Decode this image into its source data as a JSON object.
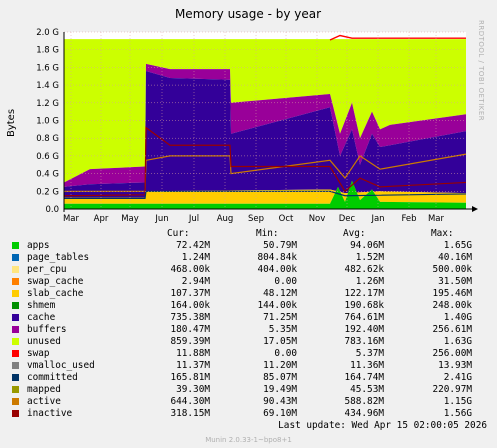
{
  "chart_data": {
    "type": "area",
    "title": "Memory usage - by year",
    "ylabel": "Bytes",
    "ylim": [
      0,
      2.0
    ],
    "y_unit": "G",
    "yticks": [
      "0.0",
      "0.2 G",
      "0.4 G",
      "0.6 G",
      "0.8 G",
      "1.0 G",
      "1.2 G",
      "1.4 G",
      "1.6 G",
      "1.8 G",
      "2.0 G"
    ],
    "xticks": [
      "Mar",
      "Apr",
      "May",
      "Jun",
      "Jul",
      "Aug",
      "Sep",
      "Oct",
      "Nov",
      "Dec",
      "Jan",
      "Feb",
      "Mar"
    ],
    "grid": true,
    "series": [
      {
        "name": "apps",
        "color": "#00cc00",
        "cur": "72.42M",
        "min": "50.79M",
        "avg": "94.06M",
        "max": "1.65G"
      },
      {
        "name": "page_tables",
        "color": "#0066b3",
        "cur": "1.24M",
        "min": "804.84k",
        "avg": "1.52M",
        "max": "40.16M"
      },
      {
        "name": "per_cpu",
        "color": "#ffe680",
        "cur": "468.00k",
        "min": "404.00k",
        "avg": "482.62k",
        "max": "500.00k"
      },
      {
        "name": "swap_cache",
        "color": "#ff8000",
        "cur": "2.94M",
        "min": "0.00",
        "avg": "1.26M",
        "max": "31.50M"
      },
      {
        "name": "slab_cache",
        "color": "#ffcc00",
        "cur": "107.37M",
        "min": "48.12M",
        "avg": "122.17M",
        "max": "195.46M"
      },
      {
        "name": "shmem",
        "color": "#008f00",
        "cur": "164.00k",
        "min": "144.00k",
        "avg": "190.68k",
        "max": "248.00k"
      },
      {
        "name": "cache",
        "color": "#330099",
        "cur": "735.38M",
        "min": "71.25M",
        "avg": "764.61M",
        "max": "1.40G"
      },
      {
        "name": "buffers",
        "color": "#990099",
        "cur": "180.47M",
        "min": "5.35M",
        "avg": "192.40M",
        "max": "256.61M"
      },
      {
        "name": "unused",
        "color": "#ccff00",
        "cur": "859.39M",
        "min": "17.05M",
        "avg": "783.16M",
        "max": "1.63G"
      },
      {
        "name": "swap",
        "color": "#ff0000",
        "cur": "11.88M",
        "min": "0.00",
        "avg": "5.37M",
        "max": "256.00M"
      },
      {
        "name": "vmalloc_used",
        "color": "#808080",
        "cur": "11.37M",
        "min": "11.20M",
        "avg": "11.36M",
        "max": "13.93M"
      },
      {
        "name": "committed",
        "color": "#003366",
        "cur": "165.81M",
        "min": "85.07M",
        "avg": "164.74M",
        "max": "2.41G"
      },
      {
        "name": "mapped",
        "color": "#999900",
        "cur": "39.30M",
        "min": "19.49M",
        "avg": "45.53M",
        "max": "220.97M"
      },
      {
        "name": "active",
        "color": "#cc7a00",
        "cur": "644.30M",
        "min": "90.43M",
        "avg": "588.82M",
        "max": "1.15G"
      },
      {
        "name": "inactive",
        "color": "#990000",
        "cur": "318.15M",
        "min": "69.10M",
        "avg": "434.96M",
        "max": "1.56G"
      }
    ]
  },
  "legend_headers": {
    "cur": "Cur:",
    "min": "Min:",
    "avg": "Avg:",
    "max": "Max:"
  },
  "footer": {
    "last_update": "Last update: Wed Apr 15 02:00:05 2026",
    "munin": "Munin 2.0.33-1~bpo8+1",
    "side": "RRDTOOL / TOBI OETIKER"
  }
}
